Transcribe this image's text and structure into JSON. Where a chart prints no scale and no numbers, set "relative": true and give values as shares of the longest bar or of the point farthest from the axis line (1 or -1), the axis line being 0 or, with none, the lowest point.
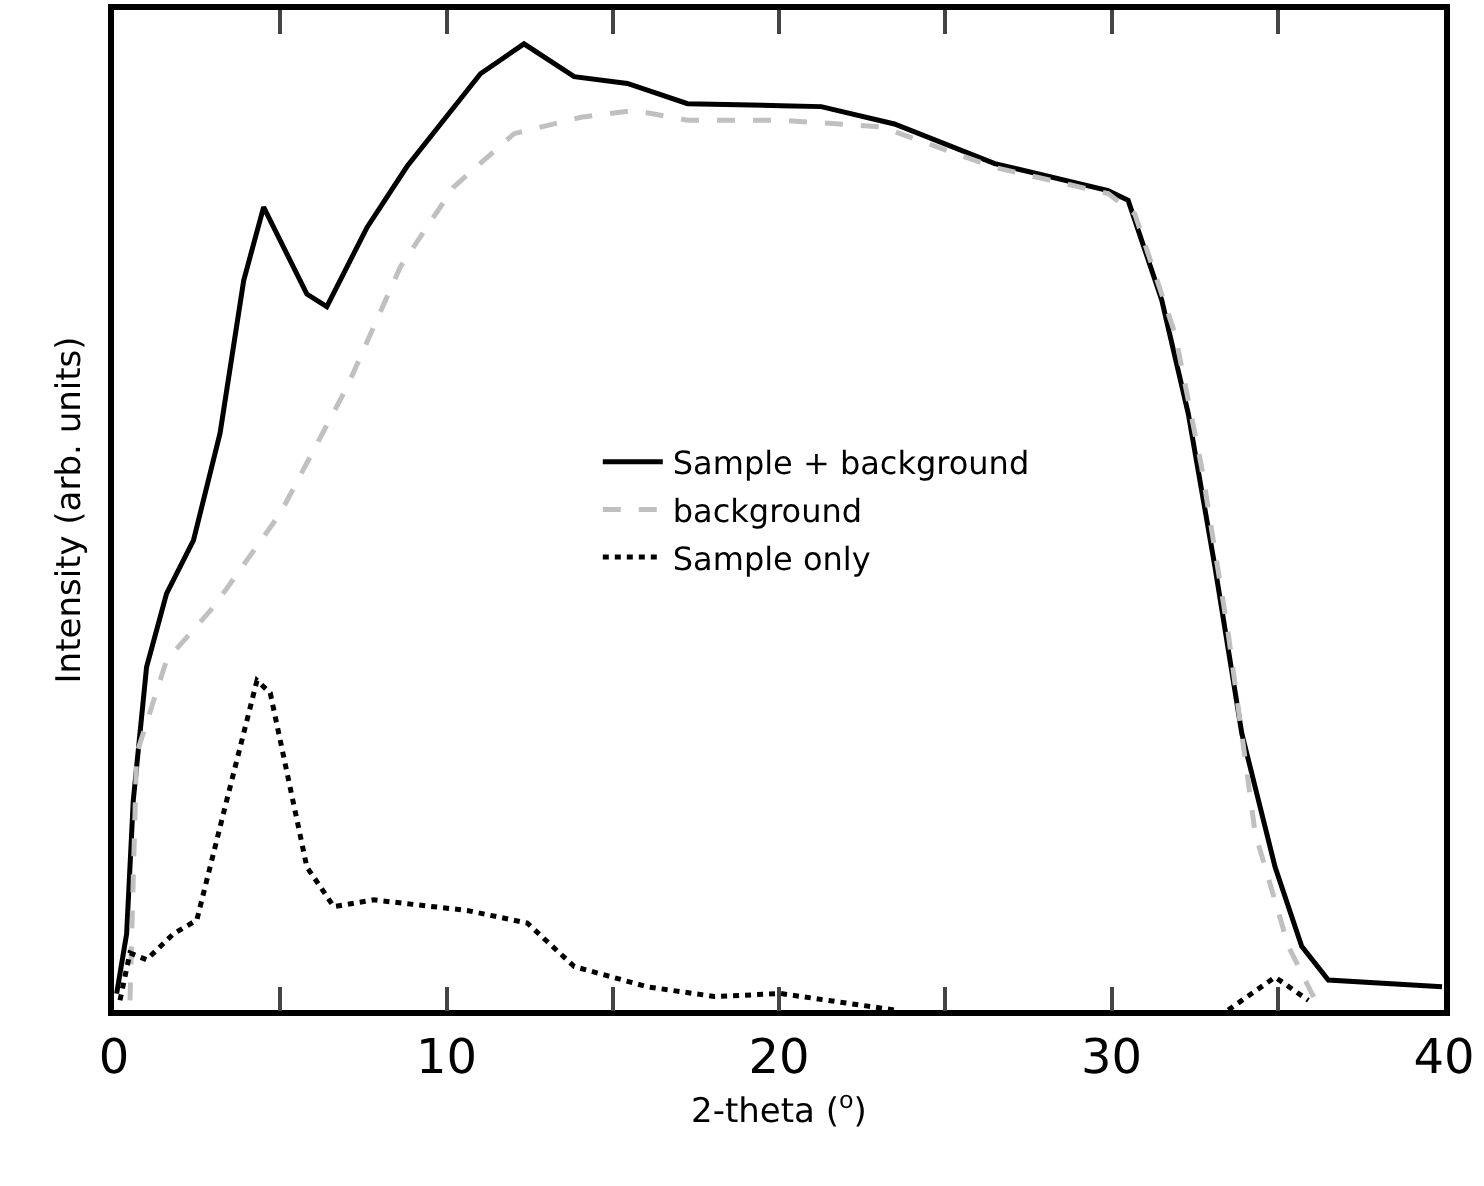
{
  "chart_data": {
    "type": "line",
    "xlabel": "2-theta ($^{o}$)",
    "ylabel": "Intensity (arb. units)",
    "relative": true,
    "xlim": [
      0,
      40
    ],
    "xticks": [
      0,
      {
        "value": 5,
        "label": null
      },
      10,
      {
        "value": 15,
        "label": null
      },
      20,
      {
        "value": 25,
        "label": null
      },
      30,
      {
        "value": 35,
        "label": null
      },
      40
    ],
    "grid": false,
    "legend": "right",
    "marker": "none",
    "series": [
      {
        "name": "Sample + background",
        "color": "#000000",
        "line_style": "solid",
        "x": [
          0.08,
          0.38,
          0.58,
          0.98,
          1.58,
          2.39,
          3.19,
          3.9,
          4.5,
          5.8,
          6.4,
          7.61,
          8.81,
          11.02,
          12.33,
          13.84,
          15.44,
          17.25,
          20.06,
          21.27,
          23.47,
          26.49,
          29.9,
          30.5,
          31.51,
          32.31,
          33.11,
          33.92,
          34.92,
          35.72,
          36.52,
          39.94
        ],
        "values": [
          0.017,
          0.079,
          0.217,
          0.355,
          0.431,
          0.486,
          0.597,
          0.755,
          0.831,
          0.741,
          0.728,
          0.81,
          0.873,
          0.969,
          1,
          0.966,
          0.959,
          0.938,
          0.936,
          0.935,
          0.917,
          0.876,
          0.848,
          0.838,
          0.735,
          0.617,
          0.459,
          0.286,
          0.148,
          0.066,
          0.031,
          0.024
        ]
      },
      {
        "name": "background",
        "color": "#c0c0c0",
        "line_style": "dashed",
        "x": [
          0.48,
          0.68,
          1.58,
          2.99,
          5,
          7.01,
          8.61,
          10.22,
          12.03,
          14.04,
          15.64,
          17.25,
          20.06,
          23.07,
          26.49,
          29.9,
          30.7,
          31.91,
          32.71,
          33.51,
          34.32,
          35.32,
          36.13
        ],
        "values": [
          0.01,
          0.265,
          0.362,
          0.417,
          0.514,
          0.645,
          0.769,
          0.852,
          0.907,
          0.924,
          0.931,
          0.921,
          0.921,
          0.914,
          0.872,
          0.845,
          0.824,
          0.7,
          0.562,
          0.39,
          0.183,
          0.066,
          0.01
        ]
      },
      {
        "name": "Sample only",
        "color": "#000000",
        "line_style": "dotted",
        "x": [
          0.18,
          0.48,
          0.98,
          1.79,
          2.49,
          3.39,
          4.3,
          4.7,
          5.8,
          6.61,
          7.81,
          10.62,
          12.43,
          13.84,
          16.04,
          18.05,
          20.06,
          23.47,
          28,
          33.51,
          34.92,
          35.92
        ],
        "values": [
          0.01,
          0.059,
          0.052,
          0.079,
          0.093,
          0.217,
          0.341,
          0.328,
          0.148,
          0.107,
          0.114,
          0.103,
          0.09,
          0.045,
          0.024,
          0.014,
          0.017,
          0,
          null,
          0,
          0.034,
          0.01
        ]
      }
    ]
  }
}
